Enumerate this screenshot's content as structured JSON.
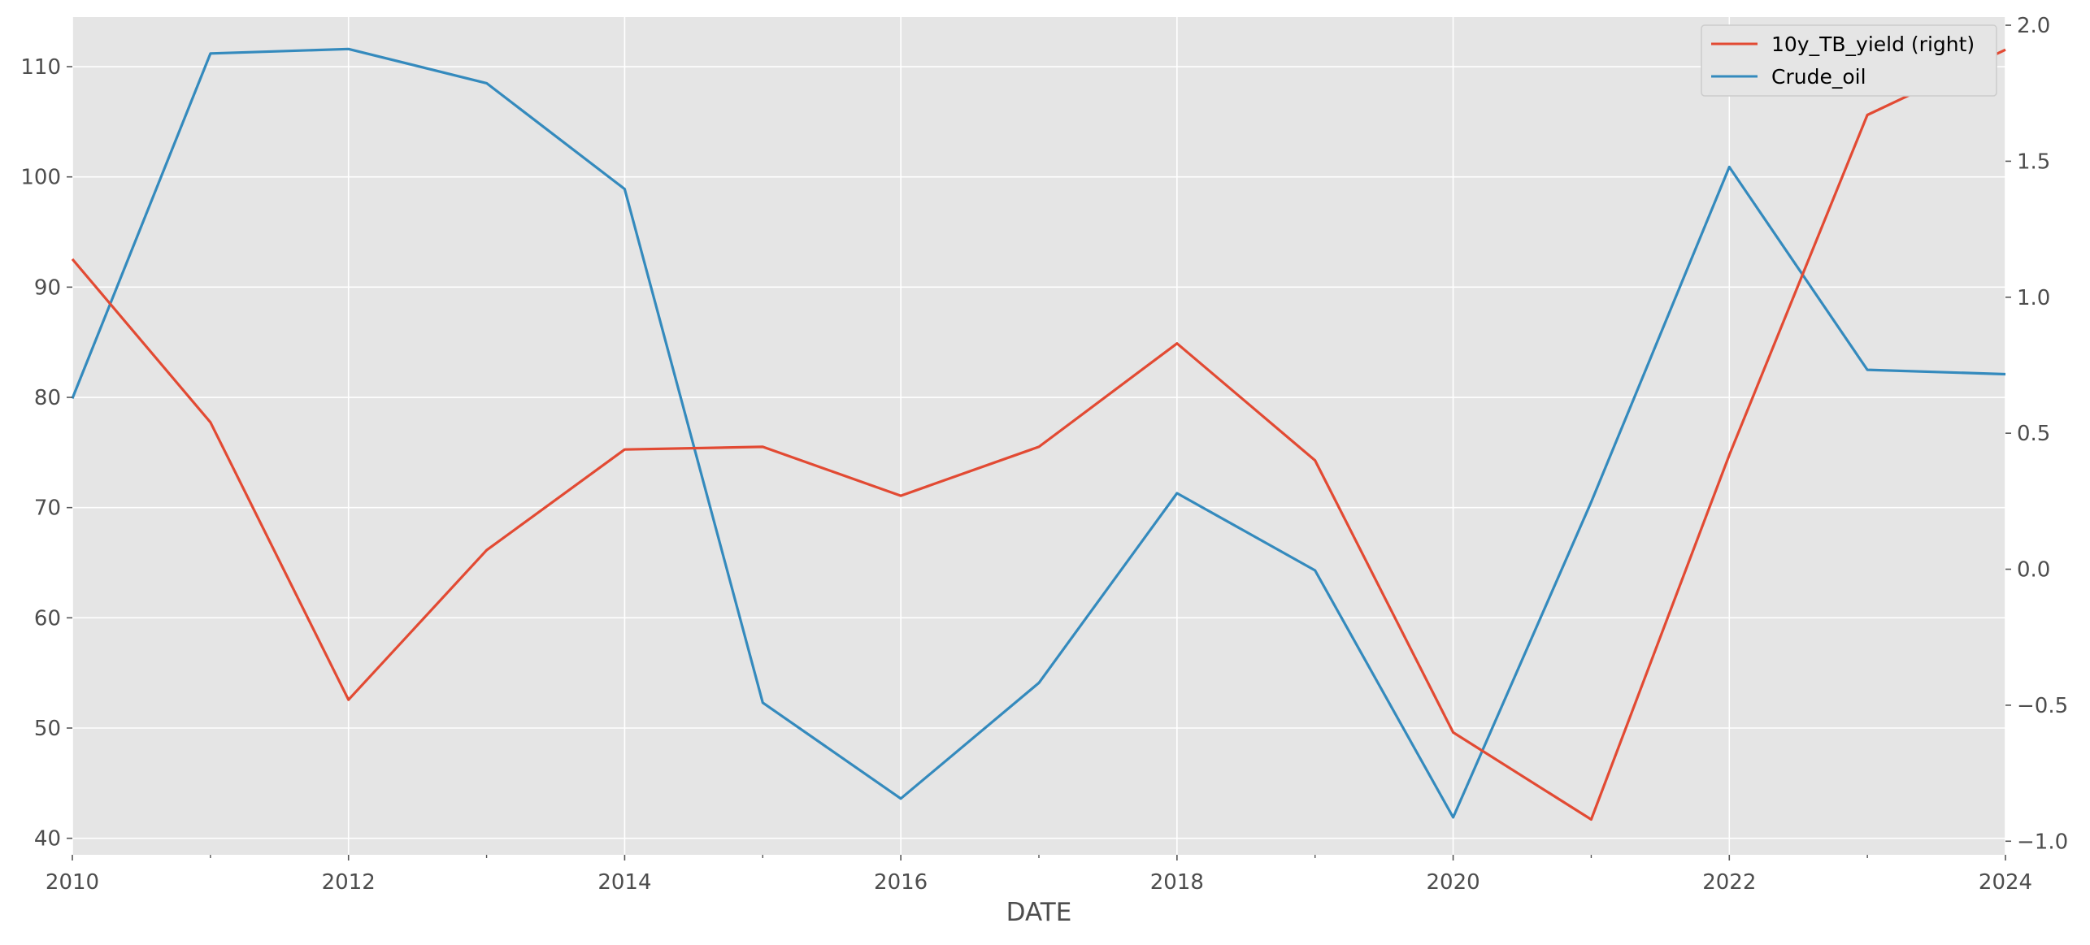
{
  "chart_data": {
    "type": "line",
    "title": "",
    "xlabel": "DATE",
    "ylabel": "",
    "ylabel_right": "",
    "x": [
      2010,
      2011,
      2012,
      2013,
      2014,
      2015,
      2016,
      2017,
      2018,
      2019,
      2020,
      2021,
      2022,
      2023,
      2024
    ],
    "x_tick_labels": [
      "2010",
      "2012",
      "2014",
      "2016",
      "2018",
      "2020",
      "2022",
      "2024"
    ],
    "xlim": [
      2010,
      2024
    ],
    "ylim_left": [
      38.5,
      114.5
    ],
    "yticks_left": [
      "40",
      "50",
      "60",
      "70",
      "80",
      "90",
      "100",
      "110"
    ],
    "ylim_right": [
      -1.05,
      2.03
    ],
    "yticks_right": [
      "−1.0",
      "−0.5",
      "0.0",
      "0.5",
      "1.0",
      "1.5",
      "2.0"
    ],
    "grid": true,
    "legend_position": "top-right",
    "series": [
      {
        "name": "10y_TB_yield (right)",
        "axis": "right",
        "color": "#E24A33",
        "values": [
          1.14,
          0.54,
          -0.48,
          0.07,
          0.44,
          0.45,
          0.27,
          0.45,
          0.83,
          0.4,
          -0.6,
          -0.92,
          0.42,
          1.67,
          1.91
        ]
      },
      {
        "name": "Crude_oil",
        "axis": "left",
        "color": "#348ABD",
        "values": [
          79.9,
          111.2,
          111.6,
          108.5,
          98.9,
          52.3,
          43.6,
          54.1,
          71.3,
          64.3,
          41.9,
          70.5,
          100.9,
          82.5,
          82.1
        ]
      }
    ]
  }
}
